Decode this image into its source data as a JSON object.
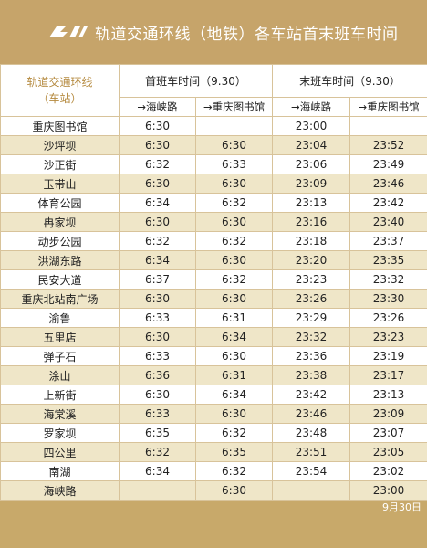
{
  "title": "轨道交通环线（地铁）各车站首末班车时间",
  "logo_icon": "cqrt-logo",
  "colors": {
    "brand": "#c6a46a",
    "stripe": "#efe6c8",
    "line_head": "#b58a3f"
  },
  "table": {
    "line_name": "轨道交通环线",
    "line_sub": "（车站）",
    "first_train": "首班车时间（9.30）",
    "last_train": "末班车时间（9.30）",
    "dir1": "→海峡路",
    "dir2": "→重庆图书馆",
    "rows": [
      {
        "station": "重庆图书馆",
        "f1": "6:30",
        "f2": "",
        "l1": "23:00",
        "l2": ""
      },
      {
        "station": "沙坪坝",
        "f1": "6:30",
        "f2": "6:30",
        "l1": "23:04",
        "l2": "23:52"
      },
      {
        "station": "沙正街",
        "f1": "6:32",
        "f2": "6:33",
        "l1": "23:06",
        "l2": "23:49"
      },
      {
        "station": "玉带山",
        "f1": "6:30",
        "f2": "6:30",
        "l1": "23:09",
        "l2": "23:46"
      },
      {
        "station": "体育公园",
        "f1": "6:34",
        "f2": "6:32",
        "l1": "23:13",
        "l2": "23:42"
      },
      {
        "station": "冉家坝",
        "f1": "6:30",
        "f2": "6:30",
        "l1": "23:16",
        "l2": "23:40"
      },
      {
        "station": "动步公园",
        "f1": "6:32",
        "f2": "6:32",
        "l1": "23:18",
        "l2": "23:37"
      },
      {
        "station": "洪湖东路",
        "f1": "6:34",
        "f2": "6:30",
        "l1": "23:20",
        "l2": "23:35"
      },
      {
        "station": "民安大道",
        "f1": "6:37",
        "f2": "6:32",
        "l1": "23:23",
        "l2": "23:32"
      },
      {
        "station": "重庆北站南广场",
        "f1": "6:30",
        "f2": "6:30",
        "l1": "23:26",
        "l2": "23:30"
      },
      {
        "station": "渝鲁",
        "f1": "6:33",
        "f2": "6:31",
        "l1": "23:29",
        "l2": "23:26"
      },
      {
        "station": "五里店",
        "f1": "6:30",
        "f2": "6:34",
        "l1": "23:32",
        "l2": "23:23"
      },
      {
        "station": "弹子石",
        "f1": "6:33",
        "f2": "6:30",
        "l1": "23:36",
        "l2": "23:19"
      },
      {
        "station": "涂山",
        "f1": "6:36",
        "f2": "6:31",
        "l1": "23:38",
        "l2": "23:17"
      },
      {
        "station": "上新街",
        "f1": "6:30",
        "f2": "6:34",
        "l1": "23:42",
        "l2": "23:13"
      },
      {
        "station": "海棠溪",
        "f1": "6:33",
        "f2": "6:30",
        "l1": "23:46",
        "l2": "23:09"
      },
      {
        "station": "罗家坝",
        "f1": "6:35",
        "f2": "6:32",
        "l1": "23:48",
        "l2": "23:07"
      },
      {
        "station": "四公里",
        "f1": "6:32",
        "f2": "6:35",
        "l1": "23:51",
        "l2": "23:05"
      },
      {
        "station": "南湖",
        "f1": "6:34",
        "f2": "6:32",
        "l1": "23:54",
        "l2": "23:02"
      },
      {
        "station": "海峡路",
        "f1": "",
        "f2": "6:30",
        "l1": "",
        "l2": "23:00"
      }
    ]
  },
  "footer_date": "9月30日"
}
